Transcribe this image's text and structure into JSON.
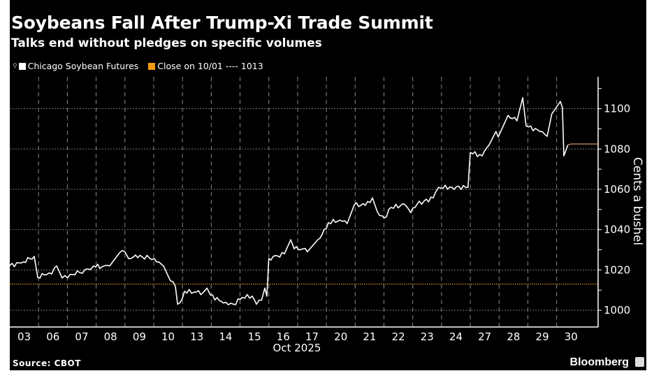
{
  "header": {
    "title": "Soybeans Fall After Trump-Xi Trade Summit",
    "subtitle": "Talks end without pledges on specific volumes"
  },
  "legend": {
    "series_label": "Chicago Soybean Futures",
    "reference_label": "Close on 10/01 ---- 1013"
  },
  "footer": {
    "source": "Source: CBOT",
    "brand": "Bloomberg"
  },
  "colors": {
    "series": "#ffffff",
    "reference": "#f39c12",
    "background": "#000000",
    "grid": "#777777"
  },
  "chart_data": {
    "type": "line",
    "title": "Soybeans Fall After Trump-Xi Trade Summit",
    "ylabel": "Cents a bushel",
    "xlabel": "Oct 2025",
    "x_categories": [
      "03",
      "06",
      "07",
      "08",
      "09",
      "10",
      "13",
      "14",
      "15",
      "16",
      "17",
      "20",
      "21",
      "22",
      "23",
      "24",
      "27",
      "28",
      "29",
      "30"
    ],
    "x_unit": "trading-day index (0 = start of 03 Oct)",
    "xlim": [
      0,
      20.44
    ],
    "ylim": [
      991.7,
      1115.8
    ],
    "yticks": [
      1000,
      1020,
      1040,
      1060,
      1080,
      1100
    ],
    "grid": true,
    "legend_position": "top-left",
    "reference_line": {
      "label": "Close on 10/01",
      "value": 1013
    },
    "series": [
      {
        "name": "Chicago Soybean Futures",
        "points": [
          [
            0,
            1022.2
          ],
          [
            0.4,
            1023.5
          ],
          [
            0.7,
            1025.6
          ],
          [
            0.85,
            1026.7
          ],
          [
            0.97,
            1016.3
          ],
          [
            1.2,
            1017.5
          ],
          [
            1.46,
            1018
          ],
          [
            1.63,
            1022
          ],
          [
            1.82,
            1016
          ],
          [
            2.1,
            1017.8
          ],
          [
            2.43,
            1018.7
          ],
          [
            2.7,
            1020.5
          ],
          [
            2.91,
            1022
          ],
          [
            3.2,
            1021.5
          ],
          [
            3.47,
            1022
          ],
          [
            3.81,
            1028.4
          ],
          [
            4.0,
            1029
          ],
          [
            4.13,
            1025.6
          ],
          [
            4.37,
            1027.4
          ],
          [
            4.6,
            1026.5
          ],
          [
            4.85,
            1026
          ],
          [
            5.1,
            1024
          ],
          [
            5.34,
            1022
          ],
          [
            5.58,
            1014.6
          ],
          [
            5.75,
            1012
          ],
          [
            5.83,
            1003
          ],
          [
            6.0,
            1006
          ],
          [
            6.07,
            1009.4
          ],
          [
            6.4,
            1009
          ],
          [
            6.72,
            1008.8
          ],
          [
            6.85,
            1011
          ],
          [
            6.97,
            1007.6
          ],
          [
            7.28,
            1004.8
          ],
          [
            7.5,
            1004
          ],
          [
            7.77,
            1003
          ],
          [
            8.08,
            1006.4
          ],
          [
            8.42,
            1007
          ],
          [
            8.57,
            1003
          ],
          [
            8.75,
            1005
          ],
          [
            8.86,
            1011
          ],
          [
            8.93,
            1007
          ],
          [
            9.0,
            1025.6
          ],
          [
            9.3,
            1027
          ],
          [
            9.54,
            1028
          ],
          [
            9.76,
            1035
          ],
          [
            9.88,
            1030.5
          ],
          [
            10.19,
            1030.5
          ],
          [
            10.34,
            1029
          ],
          [
            10.7,
            1035
          ],
          [
            11.0,
            1040.6
          ],
          [
            11.07,
            1043.5
          ],
          [
            11.48,
            1044.7
          ],
          [
            11.72,
            1043
          ],
          [
            11.97,
            1052.3
          ],
          [
            12.35,
            1052
          ],
          [
            12.6,
            1055.8
          ],
          [
            12.77,
            1048.9
          ],
          [
            13.01,
            1045.8
          ],
          [
            13.25,
            1051
          ],
          [
            13.74,
            1052.3
          ],
          [
            13.93,
            1048.4
          ],
          [
            14.15,
            1052.6
          ],
          [
            14.71,
            1055.8
          ],
          [
            14.9,
            1061
          ],
          [
            15.36,
            1061
          ],
          [
            15.92,
            1061
          ],
          [
            16.0,
            1078.3
          ],
          [
            16.41,
            1076.6
          ],
          [
            16.65,
            1082
          ],
          [
            16.89,
            1088.7
          ],
          [
            16.97,
            1086
          ],
          [
            17.31,
            1096.7
          ],
          [
            17.62,
            1094
          ],
          [
            17.82,
            1105.4
          ],
          [
            17.94,
            1091.5
          ],
          [
            18.42,
            1088.7
          ],
          [
            18.67,
            1086.3
          ],
          [
            18.83,
            1097.4
          ],
          [
            19.13,
            1103.6
          ],
          [
            19.2,
            1100.5
          ],
          [
            19.25,
            1076.6
          ],
          [
            19.39,
            1082
          ]
        ],
        "extension": {
          "from": 19.39,
          "to": 20.44,
          "value": 1082.5
        }
      }
    ]
  }
}
